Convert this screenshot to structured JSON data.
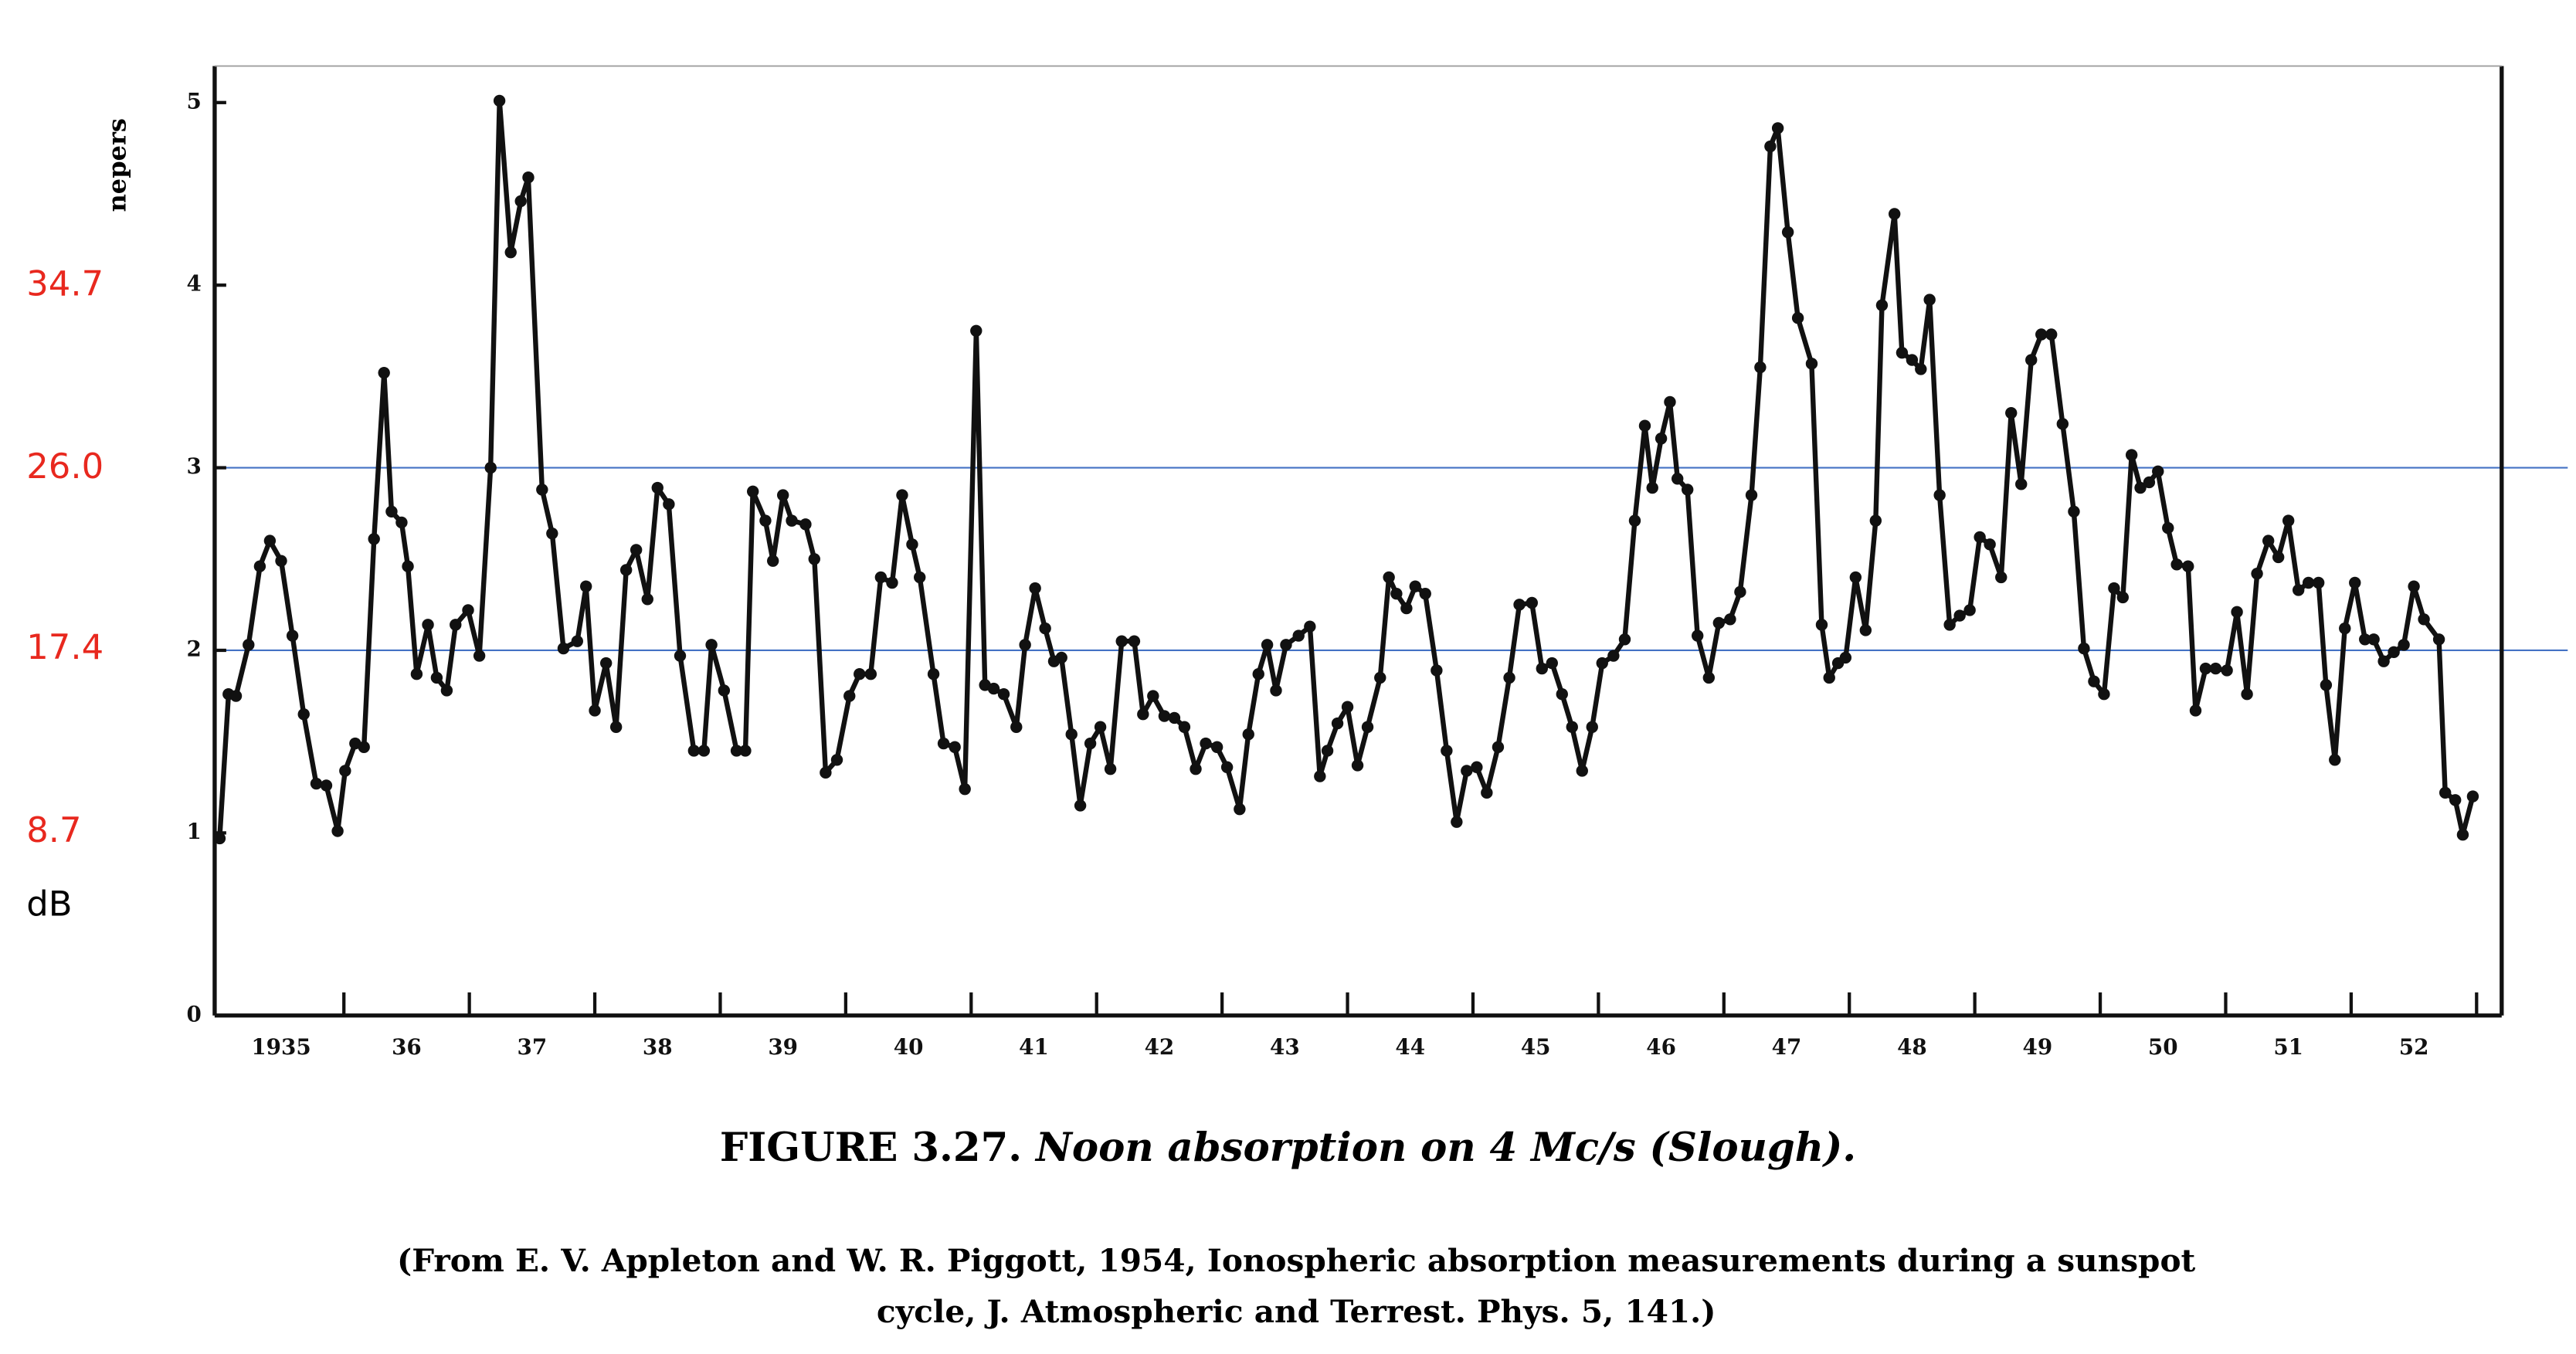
{
  "chart_data": {
    "type": "line",
    "figure_label": "FIGURE 3.27.",
    "title": "Noon absorption on 4 Mc/s (Slough).",
    "source": [
      "(From E. V. Appleton and W. R. Piggott, 1954, Ionospheric absorption measurements during a sunspot",
      "cycle, J. Atmospheric and Terrest. Phys. 5, 141.)"
    ],
    "ylabel": "nepers",
    "y2label": "dB",
    "color": "#111111",
    "x": [
      1935.01,
      1935.08,
      1935.14,
      1935.24,
      1935.33,
      1935.41,
      1935.5,
      1935.59,
      1935.68,
      1935.78,
      1935.86,
      1935.95,
      1936.01,
      1936.09,
      1936.16,
      1936.24,
      1936.32,
      1936.38,
      1936.46,
      1936.51,
      1936.58,
      1936.67,
      1936.74,
      1936.82,
      1936.89,
      1936.99,
      1937.08,
      1937.17,
      1937.24,
      1937.33,
      1937.41,
      1937.47,
      1937.58,
      1937.66,
      1937.75,
      1937.86,
      1937.93,
      1938.0,
      1938.09,
      1938.17,
      1938.25,
      1938.33,
      1938.42,
      1938.5,
      1938.59,
      1938.68,
      1938.79,
      1938.87,
      1938.93,
      1939.03,
      1939.13,
      1939.2,
      1939.26,
      1939.36,
      1939.42,
      1939.5,
      1939.57,
      1939.68,
      1939.75,
      1939.84,
      1939.93,
      1940.03,
      1940.11,
      1940.2,
      1940.28,
      1940.37,
      1940.45,
      1940.53,
      1940.59,
      1940.7,
      1940.78,
      1940.87,
      1940.95,
      1941.04,
      1941.11,
      1941.18,
      1941.26,
      1941.36,
      1941.43,
      1941.51,
      1941.59,
      1941.66,
      1941.72,
      1941.8,
      1941.87,
      1941.95,
      1942.03,
      1942.11,
      1942.2,
      1942.3,
      1942.37,
      1942.45,
      1942.54,
      1942.62,
      1942.7,
      1942.79,
      1942.87,
      1942.96,
      1943.04,
      1943.14,
      1943.21,
      1943.29,
      1943.36,
      1943.43,
      1943.51,
      1943.61,
      1943.7,
      1943.78,
      1943.84,
      1943.92,
      1944.0,
      1944.08,
      1944.16,
      1944.26,
      1944.33,
      1944.39,
      1944.47,
      1944.54,
      1944.62,
      1944.71,
      1944.79,
      1944.87,
      1944.95,
      1945.03,
      1945.11,
      1945.2,
      1945.29,
      1945.37,
      1945.47,
      1945.55,
      1945.63,
      1945.71,
      1945.79,
      1945.87,
      1945.95,
      1946.03,
      1946.12,
      1946.21,
      1946.29,
      1946.37,
      1946.43,
      1946.5,
      1946.57,
      1946.63,
      1946.71,
      1946.79,
      1946.88,
      1946.96,
      1947.05,
      1947.13,
      1947.22,
      1947.29,
      1947.37,
      1947.43,
      1947.51,
      1947.59,
      1947.7,
      1947.78,
      1947.84,
      1947.91,
      1947.97,
      1948.05,
      1948.13,
      1948.21,
      1948.26,
      1948.36,
      1948.42,
      1948.5,
      1948.57,
      1948.64,
      1948.72,
      1948.8,
      1948.88,
      1948.96,
      1949.04,
      1949.12,
      1949.21,
      1949.29,
      1949.37,
      1949.45,
      1949.53,
      1949.61,
      1949.7,
      1949.79,
      1949.87,
      1949.95,
      1950.03,
      1950.11,
      1950.18,
      1950.25,
      1950.32,
      1950.39,
      1950.46,
      1950.54,
      1950.61,
      1950.7,
      1950.76,
      1950.84,
      1950.92,
      1951.01,
      1951.09,
      1951.17,
      1951.25,
      1951.34,
      1951.42,
      1951.5,
      1951.58,
      1951.66,
      1951.74,
      1951.8,
      1951.87,
      1951.95,
      1952.03,
      1952.11,
      1952.18,
      1952.26,
      1952.34,
      1952.42,
      1952.5,
      1952.58,
      1952.7,
      1952.75,
      1952.83,
      1952.89,
      1952.97
    ],
    "values": [
      0.97,
      1.76,
      1.75,
      2.03,
      2.46,
      2.6,
      2.49,
      2.08,
      1.65,
      1.27,
      1.26,
      1.01,
      1.34,
      1.49,
      1.47,
      2.61,
      3.52,
      2.76,
      2.7,
      2.46,
      1.87,
      2.14,
      1.85,
      1.78,
      2.14,
      2.22,
      1.97,
      3.0,
      5.01,
      4.18,
      4.46,
      4.59,
      2.88,
      2.64,
      2.01,
      2.05,
      2.35,
      1.67,
      1.93,
      1.58,
      2.44,
      2.55,
      2.28,
      2.89,
      2.8,
      1.97,
      1.45,
      1.45,
      2.03,
      1.78,
      1.45,
      1.45,
      2.87,
      2.71,
      2.49,
      2.85,
      2.71,
      2.69,
      2.5,
      1.33,
      1.4,
      1.75,
      1.87,
      1.87,
      2.4,
      2.37,
      2.85,
      2.58,
      2.4,
      1.87,
      1.49,
      1.47,
      1.24,
      3.75,
      1.81,
      1.79,
      1.76,
      1.58,
      2.03,
      2.34,
      2.12,
      1.94,
      1.96,
      1.54,
      1.15,
      1.49,
      1.58,
      1.35,
      2.05,
      2.05,
      1.65,
      1.75,
      1.64,
      1.63,
      1.58,
      1.35,
      1.49,
      1.47,
      1.36,
      1.13,
      1.54,
      1.87,
      2.03,
      1.78,
      2.03,
      2.08,
      2.13,
      1.31,
      1.45,
      1.6,
      1.69,
      1.37,
      1.58,
      1.85,
      2.4,
      2.31,
      2.23,
      2.35,
      2.31,
      1.89,
      1.45,
      1.06,
      1.34,
      1.36,
      1.22,
      1.47,
      1.85,
      2.25,
      2.26,
      1.9,
      1.93,
      1.76,
      1.58,
      1.34,
      1.58,
      1.93,
      1.97,
      2.06,
      2.71,
      3.23,
      2.89,
      3.16,
      3.36,
      2.94,
      2.88,
      2.08,
      1.85,
      2.15,
      2.17,
      2.32,
      2.85,
      3.55,
      4.76,
      4.86,
      4.29,
      3.82,
      3.57,
      2.14,
      1.85,
      1.93,
      1.96,
      2.4,
      2.11,
      2.71,
      3.89,
      4.39,
      3.63,
      3.59,
      3.54,
      3.92,
      2.85,
      2.14,
      2.19,
      2.22,
      2.62,
      2.58,
      2.4,
      3.3,
      2.91,
      3.59,
      3.73,
      3.73,
      3.24,
      2.76,
      2.01,
      1.83,
      1.76,
      2.34,
      2.29,
      3.07,
      2.89,
      2.92,
      2.98,
      2.67,
      2.47,
      2.46,
      1.67,
      1.9,
      1.9,
      1.89,
      2.21,
      1.76,
      2.42,
      2.6,
      2.51,
      2.71,
      2.33,
      2.37,
      2.37,
      1.81,
      1.4,
      2.12,
      2.37,
      2.06,
      2.06,
      1.94,
      1.99,
      2.03,
      2.35,
      2.17,
      2.06,
      1.22,
      1.18,
      0.99,
      1.2
    ],
    "xlim": [
      1934.97,
      1953.2
    ],
    "xticks": [
      {
        "value": 1935.5,
        "label": "1935"
      },
      {
        "value": 1936.5,
        "label": "36"
      },
      {
        "value": 1937.5,
        "label": "37"
      },
      {
        "value": 1938.5,
        "label": "38"
      },
      {
        "value": 1939.5,
        "label": "39"
      },
      {
        "value": 1940.5,
        "label": "40"
      },
      {
        "value": 1941.5,
        "label": "41"
      },
      {
        "value": 1942.5,
        "label": "42"
      },
      {
        "value": 1943.5,
        "label": "43"
      },
      {
        "value": 1944.5,
        "label": "44"
      },
      {
        "value": 1945.5,
        "label": "45"
      },
      {
        "value": 1946.5,
        "label": "46"
      },
      {
        "value": 1947.5,
        "label": "47"
      },
      {
        "value": 1948.5,
        "label": "48"
      },
      {
        "value": 1949.5,
        "label": "49"
      },
      {
        "value": 1950.5,
        "label": "50"
      },
      {
        "value": 1951.5,
        "label": "51"
      },
      {
        "value": 1952.5,
        "label": "52"
      }
    ],
    "ylim": [
      0,
      5.2
    ],
    "yticks": [
      0,
      1,
      2,
      3,
      4,
      5
    ],
    "y2lim": [
      0,
      45.17
    ],
    "y2ticks": [
      8.7,
      17.4,
      {
        "value": 26,
        "label": "26.0"
      },
      34.7
    ],
    "y2color": "#e8281e",
    "reference_lines": {
      "values": [
        2,
        3
      ],
      "color": "#4472c4"
    }
  }
}
